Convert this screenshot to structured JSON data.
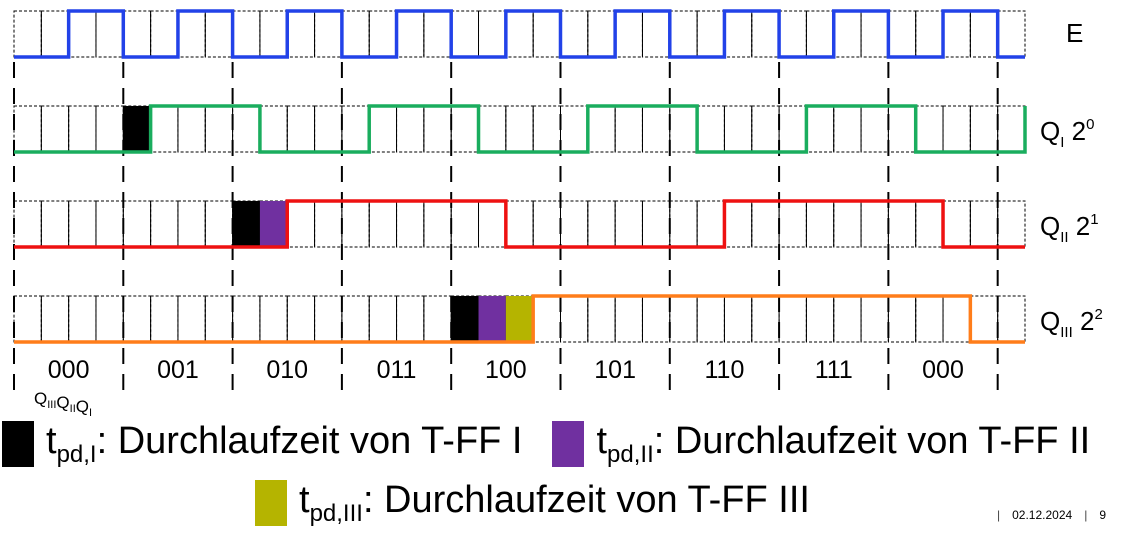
{
  "colors": {
    "clock": "#2242e8",
    "q1": "#1aad5e",
    "q2": "#ee1111",
    "q3": "#ff7d1a",
    "tpd1": "#000000",
    "tpd2": "#7030a0",
    "tpd3": "#b5b400",
    "grid": "#000000"
  },
  "signals": [
    {
      "id": "E",
      "label": "E",
      "sub": "",
      "exp": ""
    },
    {
      "id": "Q1",
      "label": "Q",
      "sub": "I",
      "exp": "0",
      "base": "2"
    },
    {
      "id": "Q2",
      "label": "Q",
      "sub": "II",
      "exp": "1",
      "base": "2"
    },
    {
      "id": "Q3",
      "label": "Q",
      "sub": "III",
      "exp": "2",
      "base": "2"
    }
  ],
  "state_labels": [
    "000",
    "001",
    "010",
    "011",
    "100",
    "101",
    "110",
    "111",
    "000"
  ],
  "state_order_label": {
    "q3": "Q",
    "q3_sub": "III",
    "q2": "Q",
    "q2_sub": "II",
    "q1": "Q",
    "q1_sub": "I"
  },
  "timing": {
    "cells": 37,
    "q1_toggles": [
      5,
      9,
      13,
      17,
      21,
      25,
      29,
      33,
      37
    ],
    "q2_toggles": [
      10,
      18,
      26,
      34
    ],
    "q3_toggles": [
      19,
      35
    ],
    "tpd_units": 1
  },
  "legend": [
    {
      "swatch": "tpd1",
      "t": "t",
      "sub": "pd,I",
      "text": ": Durchlaufzeit von T-FF I"
    },
    {
      "swatch": "tpd2",
      "t": "t",
      "sub": "pd,II",
      "text": ": Durchlaufzeit von T-FF II"
    },
    {
      "swatch": "tpd3",
      "t": "t",
      "sub": "pd,III",
      "text": ": Durchlaufzeit von T-FF III"
    }
  ],
  "footer": {
    "date": "02.12.2024",
    "page": "9",
    "sep": "|"
  }
}
